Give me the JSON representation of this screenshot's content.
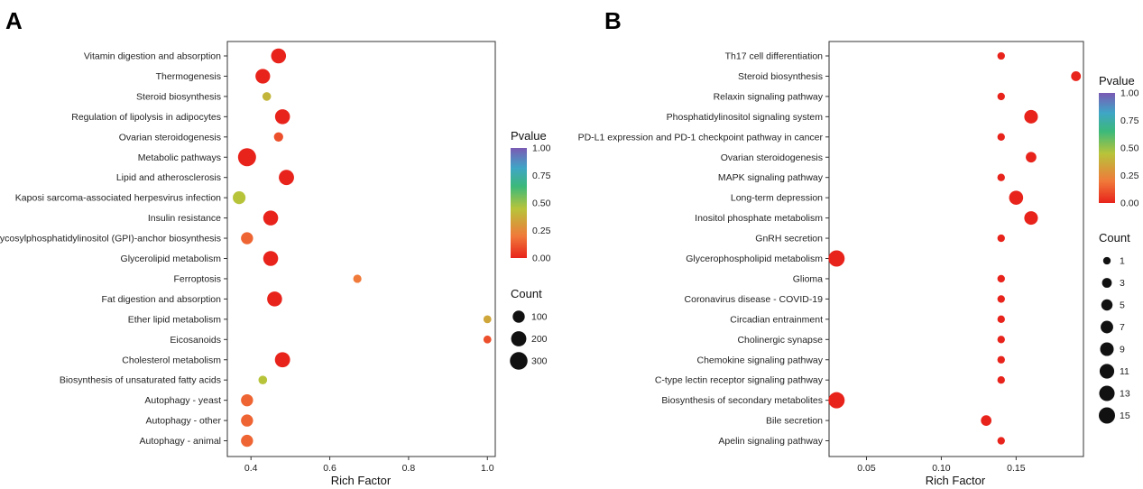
{
  "colors": {
    "pvalue_gradient": [
      "#e8231b",
      "#f07a3a",
      "#b7c43a",
      "#3cb97a",
      "#3fa5c6",
      "#7a5ab4"
    ]
  },
  "chart_data": [
    {
      "type": "scatter",
      "panel": "A",
      "xlabel": "Rich Factor",
      "xlim": [
        0.34,
        1.02
      ],
      "xticks": [
        "0.4",
        "0.6",
        "0.8",
        "1.0"
      ],
      "xtick_values": [
        0.4,
        0.6,
        0.8,
        1.0
      ],
      "categories": [
        "Vitamin digestion and absorption",
        "Thermogenesis",
        "Steroid biosynthesis",
        "Regulation of lipolysis in adipocytes",
        "Ovarian steroidogenesis",
        "Metabolic pathways",
        "Lipid and atherosclerosis",
        "Kaposi sarcoma-associated herpesvirus infection",
        "Insulin resistance",
        "Glycosylphosphatidylinositol (GPI)-anchor biosynthesis",
        "Glycerolipid metabolism",
        "Ferroptosis",
        "Fat digestion and absorption",
        "Ether lipid metabolism",
        "Eicosanoids",
        "Cholesterol metabolism",
        "Biosynthesis of unsaturated fatty acids",
        "Autophagy - yeast",
        "Autophagy - other",
        "Autophagy - animal"
      ],
      "points": [
        {
          "x": 0.47,
          "count": 190,
          "pvalue": 0.0
        },
        {
          "x": 0.43,
          "count": 180,
          "pvalue": 0.0
        },
        {
          "x": 0.44,
          "count": 30,
          "pvalue": 0.4
        },
        {
          "x": 0.48,
          "count": 190,
          "pvalue": 0.0
        },
        {
          "x": 0.47,
          "count": 40,
          "pvalue": 0.1
        },
        {
          "x": 0.39,
          "count": 320,
          "pvalue": 0.0
        },
        {
          "x": 0.49,
          "count": 200,
          "pvalue": 0.0
        },
        {
          "x": 0.37,
          "count": 120,
          "pvalue": 0.45
        },
        {
          "x": 0.45,
          "count": 190,
          "pvalue": 0.0
        },
        {
          "x": 0.39,
          "count": 100,
          "pvalue": 0.15
        },
        {
          "x": 0.45,
          "count": 190,
          "pvalue": 0.0
        },
        {
          "x": 0.67,
          "count": 25,
          "pvalue": 0.2
        },
        {
          "x": 0.46,
          "count": 190,
          "pvalue": 0.0
        },
        {
          "x": 1.0,
          "count": 20,
          "pvalue": 0.35
        },
        {
          "x": 1.0,
          "count": 20,
          "pvalue": 0.1
        },
        {
          "x": 0.48,
          "count": 200,
          "pvalue": 0.0
        },
        {
          "x": 0.43,
          "count": 30,
          "pvalue": 0.45
        },
        {
          "x": 0.39,
          "count": 100,
          "pvalue": 0.15
        },
        {
          "x": 0.39,
          "count": 100,
          "pvalue": 0.15
        },
        {
          "x": 0.39,
          "count": 100,
          "pvalue": 0.15
        }
      ],
      "legend_color": {
        "title": "Pvalue",
        "ticks": [
          "1.00",
          "0.75",
          "0.50",
          "0.25",
          "0.00"
        ]
      },
      "legend_size": {
        "title": "Count",
        "ticks": [
          "100",
          "200",
          "300"
        ],
        "values": [
          100,
          200,
          300
        ],
        "max_count": 320
      }
    },
    {
      "type": "scatter",
      "panel": "B",
      "xlabel": "Rich Factor",
      "xlim": [
        0.025,
        0.195
      ],
      "xticks": [
        "0.05",
        "0.10",
        "0.15"
      ],
      "xtick_values": [
        0.05,
        0.1,
        0.15
      ],
      "categories": [
        "Th17 cell differentiation",
        "Steroid biosynthesis",
        "Relaxin signaling pathway",
        "Phosphatidylinositol signaling system",
        "PD-L1 expression and PD-1 checkpoint pathway in cancer",
        "Ovarian steroidogenesis",
        "MAPK signaling pathway",
        "Long-term depression",
        "Inositol phosphate metabolism",
        "GnRH secretion",
        "Glycerophospholipid metabolism",
        "Glioma",
        "Coronavirus disease - COVID-19",
        "Circadian entrainment",
        "Cholinergic synapse",
        "Chemokine signaling pathway",
        "C-type lectin receptor signaling pathway",
        "Biosynthesis of secondary metabolites",
        "Bile secretion",
        "Apelin signaling pathway"
      ],
      "points": [
        {
          "x": 0.14,
          "count": 1,
          "pvalue": 0.0
        },
        {
          "x": 0.19,
          "count": 3,
          "pvalue": 0.0
        },
        {
          "x": 0.14,
          "count": 1,
          "pvalue": 0.0
        },
        {
          "x": 0.16,
          "count": 9,
          "pvalue": 0.0
        },
        {
          "x": 0.14,
          "count": 1,
          "pvalue": 0.0
        },
        {
          "x": 0.16,
          "count": 4,
          "pvalue": 0.0
        },
        {
          "x": 0.14,
          "count": 1,
          "pvalue": 0.0
        },
        {
          "x": 0.15,
          "count": 10,
          "pvalue": 0.0
        },
        {
          "x": 0.16,
          "count": 9,
          "pvalue": 0.0
        },
        {
          "x": 0.14,
          "count": 1,
          "pvalue": 0.0
        },
        {
          "x": 0.03,
          "count": 15,
          "pvalue": 0.0
        },
        {
          "x": 0.14,
          "count": 1,
          "pvalue": 0.0
        },
        {
          "x": 0.14,
          "count": 1,
          "pvalue": 0.0
        },
        {
          "x": 0.14,
          "count": 1,
          "pvalue": 0.0
        },
        {
          "x": 0.14,
          "count": 1,
          "pvalue": 0.0
        },
        {
          "x": 0.14,
          "count": 1,
          "pvalue": 0.0
        },
        {
          "x": 0.14,
          "count": 1,
          "pvalue": 0.0
        },
        {
          "x": 0.03,
          "count": 15,
          "pvalue": 0.0
        },
        {
          "x": 0.13,
          "count": 4,
          "pvalue": 0.0
        },
        {
          "x": 0.14,
          "count": 1,
          "pvalue": 0.0
        }
      ],
      "legend_color": {
        "title": "Pvalue",
        "ticks": [
          "1.00",
          "0.75",
          "0.50",
          "0.25",
          "0.00"
        ]
      },
      "legend_size": {
        "title": "Count",
        "ticks": [
          "1",
          "3",
          "5",
          "7",
          "9",
          "11",
          "13",
          "15"
        ],
        "values": [
          1,
          3,
          5,
          7,
          9,
          11,
          13,
          15
        ],
        "max_count": 15
      }
    }
  ]
}
